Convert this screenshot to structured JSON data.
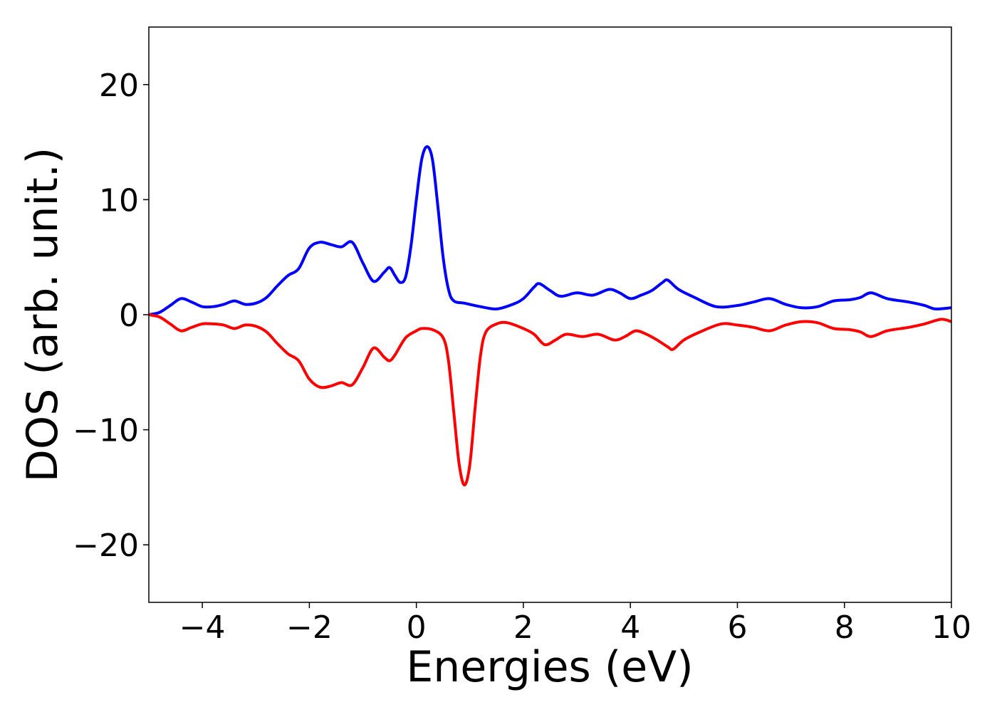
{
  "chart_data": {
    "type": "line",
    "title": "",
    "xlabel": "Energies (eV)",
    "ylabel": "DOS (arb. unit.)",
    "xlim": [
      -5,
      10
    ],
    "ylim": [
      -25,
      25
    ],
    "xticks": [
      -4,
      -2,
      0,
      2,
      4,
      6,
      8,
      10
    ],
    "yticks": [
      -20,
      -10,
      0,
      10,
      20
    ],
    "xtick_labels": [
      "−4",
      "−2",
      "0",
      "2",
      "4",
      "6",
      "8",
      "10"
    ],
    "ytick_labels": [
      "−20",
      "−10",
      "0",
      "10",
      "20"
    ],
    "grid": false,
    "legend": "none",
    "series": [
      {
        "color": "#0000ff",
        "points": [
          [
            -5.0,
            0.0
          ],
          [
            -4.8,
            0.2
          ],
          [
            -4.6,
            0.8
          ],
          [
            -4.4,
            1.4
          ],
          [
            -4.2,
            1.1
          ],
          [
            -4.0,
            0.7
          ],
          [
            -3.8,
            0.7
          ],
          [
            -3.6,
            0.9
          ],
          [
            -3.4,
            1.2
          ],
          [
            -3.2,
            0.9
          ],
          [
            -3.0,
            1.0
          ],
          [
            -2.8,
            1.5
          ],
          [
            -2.6,
            2.5
          ],
          [
            -2.4,
            3.4
          ],
          [
            -2.2,
            4.0
          ],
          [
            -2.0,
            5.8
          ],
          [
            -1.8,
            6.3
          ],
          [
            -1.6,
            6.1
          ],
          [
            -1.4,
            5.9
          ],
          [
            -1.2,
            6.3
          ],
          [
            -1.0,
            4.5
          ],
          [
            -0.8,
            2.9
          ],
          [
            -0.6,
            3.7
          ],
          [
            -0.5,
            4.1
          ],
          [
            -0.4,
            3.4
          ],
          [
            -0.3,
            2.8
          ],
          [
            -0.2,
            3.3
          ],
          [
            -0.1,
            6.0
          ],
          [
            0.0,
            10.0
          ],
          [
            0.1,
            13.5
          ],
          [
            0.2,
            14.6
          ],
          [
            0.3,
            13.5
          ],
          [
            0.4,
            9.5
          ],
          [
            0.5,
            5.0
          ],
          [
            0.6,
            2.2
          ],
          [
            0.7,
            1.2
          ],
          [
            0.9,
            1.0
          ],
          [
            1.2,
            0.7
          ],
          [
            1.5,
            0.5
          ],
          [
            1.8,
            0.9
          ],
          [
            2.0,
            1.4
          ],
          [
            2.2,
            2.4
          ],
          [
            2.3,
            2.7
          ],
          [
            2.5,
            2.1
          ],
          [
            2.7,
            1.6
          ],
          [
            3.0,
            1.9
          ],
          [
            3.3,
            1.7
          ],
          [
            3.6,
            2.2
          ],
          [
            3.8,
            1.9
          ],
          [
            4.0,
            1.4
          ],
          [
            4.2,
            1.7
          ],
          [
            4.4,
            2.1
          ],
          [
            4.6,
            2.8
          ],
          [
            4.7,
            3.0
          ],
          [
            4.9,
            2.2
          ],
          [
            5.2,
            1.5
          ],
          [
            5.6,
            0.7
          ],
          [
            6.0,
            0.8
          ],
          [
            6.3,
            1.1
          ],
          [
            6.6,
            1.4
          ],
          [
            6.9,
            0.9
          ],
          [
            7.2,
            0.6
          ],
          [
            7.5,
            0.7
          ],
          [
            7.8,
            1.2
          ],
          [
            8.1,
            1.3
          ],
          [
            8.3,
            1.5
          ],
          [
            8.5,
            1.9
          ],
          [
            8.8,
            1.4
          ],
          [
            9.2,
            1.1
          ],
          [
            9.5,
            0.8
          ],
          [
            9.7,
            0.5
          ],
          [
            10.0,
            0.6
          ]
        ]
      },
      {
        "color": "#ff0000",
        "points": [
          [
            -5.0,
            0.0
          ],
          [
            -4.8,
            -0.2
          ],
          [
            -4.6,
            -0.8
          ],
          [
            -4.4,
            -1.4
          ],
          [
            -4.2,
            -1.1
          ],
          [
            -4.0,
            -0.8
          ],
          [
            -3.8,
            -0.8
          ],
          [
            -3.6,
            -0.9
          ],
          [
            -3.4,
            -1.2
          ],
          [
            -3.2,
            -0.9
          ],
          [
            -3.0,
            -1.0
          ],
          [
            -2.8,
            -1.5
          ],
          [
            -2.6,
            -2.5
          ],
          [
            -2.4,
            -3.4
          ],
          [
            -2.2,
            -4.0
          ],
          [
            -2.0,
            -5.6
          ],
          [
            -1.8,
            -6.3
          ],
          [
            -1.6,
            -6.2
          ],
          [
            -1.4,
            -5.9
          ],
          [
            -1.2,
            -6.1
          ],
          [
            -1.0,
            -4.6
          ],
          [
            -0.8,
            -2.9
          ],
          [
            -0.6,
            -3.7
          ],
          [
            -0.5,
            -4.0
          ],
          [
            -0.4,
            -3.5
          ],
          [
            -0.2,
            -2.0
          ],
          [
            0.0,
            -1.4
          ],
          [
            0.1,
            -1.2
          ],
          [
            0.3,
            -1.3
          ],
          [
            0.5,
            -2.0
          ],
          [
            0.6,
            -4.0
          ],
          [
            0.7,
            -8.5
          ],
          [
            0.8,
            -13.0
          ],
          [
            0.9,
            -14.8
          ],
          [
            1.0,
            -13.0
          ],
          [
            1.1,
            -8.0
          ],
          [
            1.2,
            -3.5
          ],
          [
            1.3,
            -1.5
          ],
          [
            1.5,
            -0.8
          ],
          [
            1.7,
            -0.7
          ],
          [
            2.0,
            -1.2
          ],
          [
            2.2,
            -1.7
          ],
          [
            2.4,
            -2.6
          ],
          [
            2.6,
            -2.2
          ],
          [
            2.8,
            -1.7
          ],
          [
            3.1,
            -1.9
          ],
          [
            3.4,
            -1.7
          ],
          [
            3.7,
            -2.2
          ],
          [
            3.9,
            -1.9
          ],
          [
            4.1,
            -1.4
          ],
          [
            4.3,
            -1.7
          ],
          [
            4.5,
            -2.2
          ],
          [
            4.7,
            -2.8
          ],
          [
            4.8,
            -3.0
          ],
          [
            5.0,
            -2.2
          ],
          [
            5.3,
            -1.5
          ],
          [
            5.7,
            -0.8
          ],
          [
            6.0,
            -0.9
          ],
          [
            6.3,
            -1.1
          ],
          [
            6.6,
            -1.4
          ],
          [
            6.9,
            -0.9
          ],
          [
            7.2,
            -0.6
          ],
          [
            7.5,
            -0.7
          ],
          [
            7.8,
            -1.2
          ],
          [
            8.1,
            -1.3
          ],
          [
            8.3,
            -1.5
          ],
          [
            8.5,
            -1.9
          ],
          [
            8.8,
            -1.4
          ],
          [
            9.2,
            -1.1
          ],
          [
            9.5,
            -0.8
          ],
          [
            9.8,
            -0.4
          ],
          [
            10.0,
            -0.6
          ]
        ]
      }
    ]
  }
}
